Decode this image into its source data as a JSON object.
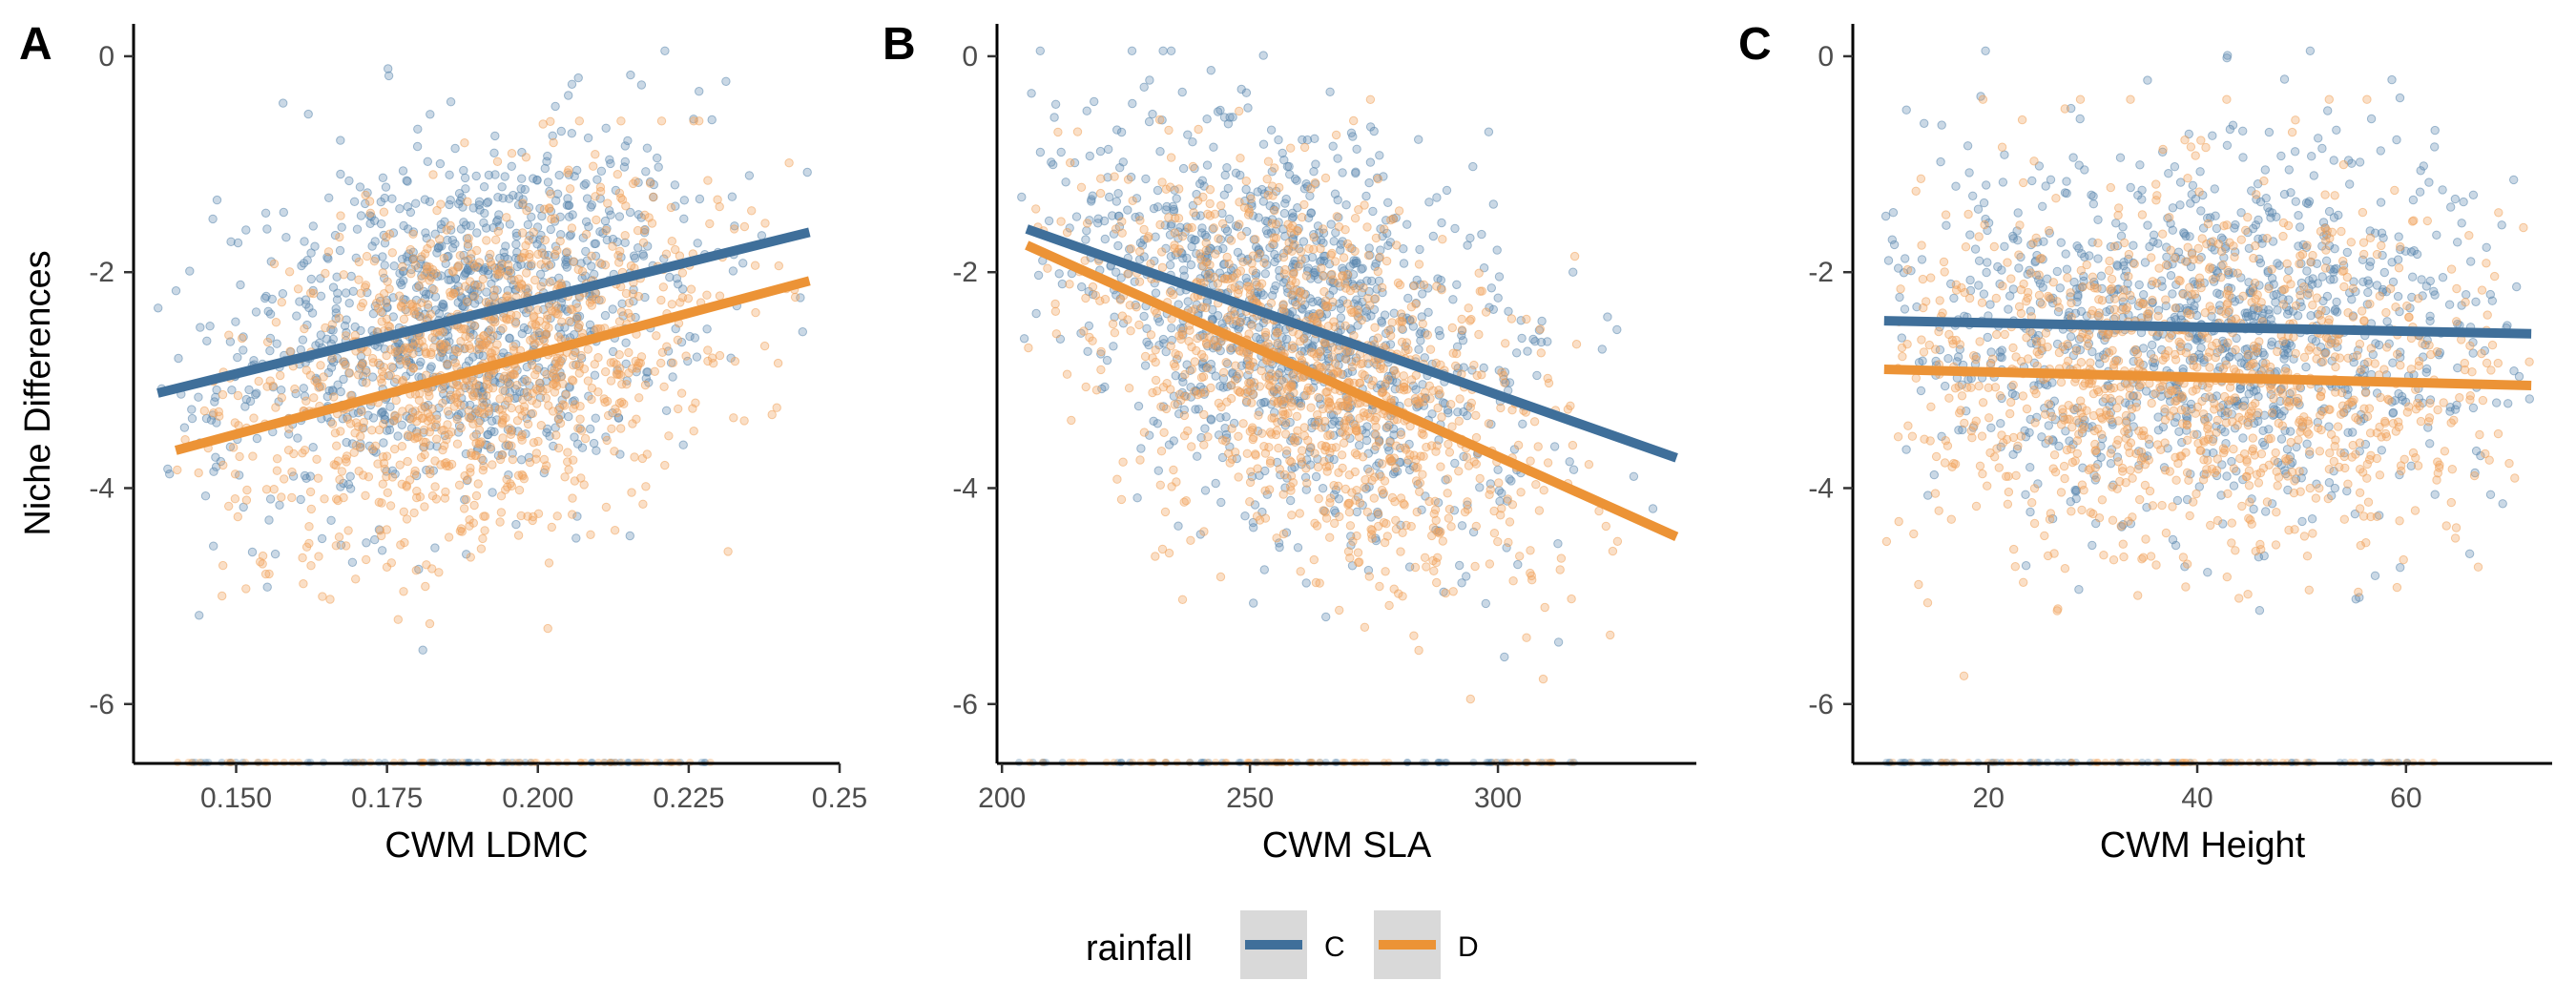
{
  "colors": {
    "C": "#3f6f9a",
    "D": "#ec9336",
    "C_points": "#5a87ad",
    "D_points": "#f0a25a",
    "legend_key_bg": "#d9d9d9"
  },
  "legend": {
    "title": "rainfall",
    "items": [
      {
        "label": "C",
        "color": "#3f6f9a"
      },
      {
        "label": "D",
        "color": "#ec9336"
      }
    ]
  },
  "chart_data": [
    {
      "type": "scatter",
      "panel": "A",
      "xlabel": "CWM LDMC",
      "ylabel": "Niche Differences",
      "xlim": [
        0.133,
        0.25
      ],
      "ylim": [
        -6.55,
        0.3
      ],
      "xticks": [
        0.15,
        0.175,
        0.2,
        0.225,
        0.25
      ],
      "xtick_labels": [
        "0.150",
        "0.175",
        "0.200",
        "0.225",
        "0.25"
      ],
      "yticks": [
        0,
        -2,
        -4,
        -6
      ],
      "ytick_labels": [
        "0",
        "-2",
        "-4",
        "-6"
      ],
      "point_cloud": {
        "C": {
          "x_mean": 0.188,
          "x_sd": 0.02,
          "x_range": [
            0.137,
            0.245
          ],
          "y_sd": 0.8,
          "y_range": [
            -5.5,
            0.05
          ]
        },
        "D": {
          "x_mean": 0.19,
          "x_sd": 0.02,
          "x_range": [
            0.14,
            0.245
          ],
          "y_sd": 0.8,
          "y_range": [
            -6.2,
            -0.6
          ]
        }
      },
      "series": [
        {
          "name": "C",
          "fit": {
            "x": [
              0.137,
              0.245
            ],
            "y": [
              -3.12,
              -1.63
            ]
          }
        },
        {
          "name": "D",
          "fit": {
            "x": [
              0.14,
              0.245
            ],
            "y": [
              -3.65,
              -2.08
            ]
          }
        }
      ]
    },
    {
      "type": "scatter",
      "panel": "B",
      "xlabel": "CWM SLA",
      "ylabel": "",
      "xlim": [
        199,
        340
      ],
      "ylim": [
        -6.55,
        0.3
      ],
      "xticks": [
        200,
        250,
        300
      ],
      "xtick_labels": [
        "200",
        "250",
        "300"
      ],
      "yticks": [
        0,
        -2,
        -4,
        -6
      ],
      "ytick_labels": [
        "0",
        "-2",
        "-4",
        "-6"
      ],
      "point_cloud": {
        "C": {
          "x_mean": 258,
          "x_sd": 22,
          "x_range": [
            203,
            336
          ],
          "y_sd": 0.85,
          "y_range": [
            -5.8,
            0.05
          ]
        },
        "D": {
          "x_mean": 262,
          "x_sd": 22,
          "x_range": [
            205,
            336
          ],
          "y_sd": 0.85,
          "y_range": [
            -6.2,
            -0.3
          ]
        }
      },
      "series": [
        {
          "name": "C",
          "fit": {
            "x": [
              205,
              336
            ],
            "y": [
              -1.6,
              -3.72
            ]
          }
        },
        {
          "name": "D",
          "fit": {
            "x": [
              205,
              336
            ],
            "y": [
              -1.75,
              -4.45
            ]
          }
        }
      ]
    },
    {
      "type": "scatter",
      "panel": "C",
      "xlabel": "CWM Height",
      "ylabel": "",
      "xlim": [
        7,
        74
      ],
      "ylim": [
        -6.55,
        0.3
      ],
      "xticks": [
        20,
        40,
        60
      ],
      "xtick_labels": [
        "20",
        "40",
        "60"
      ],
      "yticks": [
        0,
        -2,
        -4,
        -6
      ],
      "ytick_labels": [
        "0",
        "-2",
        "-4",
        "-6"
      ],
      "point_cloud": {
        "C": {
          "x_mean": 40,
          "x_sd": 15,
          "x_range": [
            10,
            72
          ],
          "y_sd": 0.85,
          "y_range": [
            -5.8,
            0.05
          ]
        },
        "D": {
          "x_mean": 40,
          "x_sd": 15,
          "x_range": [
            10,
            72
          ],
          "y_sd": 0.85,
          "y_range": [
            -6.2,
            -0.4
          ]
        }
      },
      "series": [
        {
          "name": "C",
          "fit": {
            "x": [
              10,
              72
            ],
            "y": [
              -2.45,
              -2.57
            ]
          }
        },
        {
          "name": "D",
          "fit": {
            "x": [
              10,
              72
            ],
            "y": [
              -2.9,
              -3.05
            ]
          }
        }
      ]
    }
  ]
}
